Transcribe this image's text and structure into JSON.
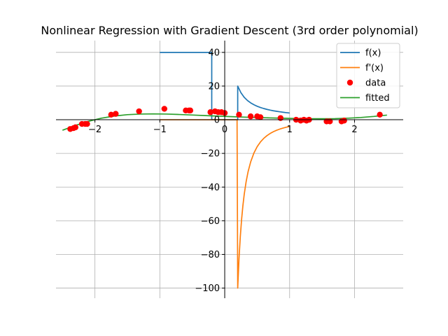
{
  "chart_data": {
    "type": "line",
    "title": "Nonlinear Regression with Gradient Descent (3rd order polynomial)",
    "xlabel": "",
    "ylabel": "",
    "xlim": [
      -2.6,
      2.75
    ],
    "ylim": [
      -106,
      47
    ],
    "grid": true,
    "legend_position": "top-right",
    "x_ticks": [
      -2,
      -1,
      0,
      1,
      2
    ],
    "x_tick_labels": [
      "−2",
      "−1",
      "0",
      "1",
      "2"
    ],
    "y_ticks": [
      -100,
      -80,
      -60,
      -40,
      -20,
      0,
      20,
      40
    ],
    "y_tick_labels": [
      "−100",
      "−80",
      "−60",
      "−40",
      "−20",
      "0",
      "20",
      "40"
    ],
    "legend": [
      "f(x)",
      "f'(x)",
      "data",
      "fitted"
    ],
    "colors": {
      "f": "#1f77b4",
      "fprime": "#ff7f0e",
      "data": "#ff0000",
      "fitted": "#2ca02c",
      "grid": "#b0b0b0"
    },
    "series": [
      {
        "name": "f(x)",
        "kind": "line",
        "points": [
          [
            -1.0,
            40
          ],
          [
            -0.2,
            40
          ],
          [
            -0.2,
            0
          ],
          [
            0.2,
            0
          ],
          [
            0.2,
            20
          ],
          [
            0.25,
            16
          ],
          [
            0.3,
            13.33
          ],
          [
            0.35,
            11.43
          ],
          [
            0.4,
            10
          ],
          [
            0.45,
            8.89
          ],
          [
            0.5,
            8
          ],
          [
            0.55,
            7.27
          ],
          [
            0.6,
            6.67
          ],
          [
            0.65,
            6.15
          ],
          [
            0.7,
            5.71
          ],
          [
            0.75,
            5.33
          ],
          [
            0.8,
            5
          ],
          [
            0.85,
            4.71
          ],
          [
            0.9,
            4.44
          ],
          [
            0.95,
            4.21
          ],
          [
            1.0,
            4
          ]
        ]
      },
      {
        "name": "f'(x)",
        "kind": "line",
        "points": [
          [
            -1.0,
            0
          ],
          [
            0.19,
            0
          ],
          [
            0.2,
            -100
          ],
          [
            0.22,
            -82.64
          ],
          [
            0.24,
            -69.44
          ],
          [
            0.26,
            -59.17
          ],
          [
            0.28,
            -51.02
          ],
          [
            0.3,
            -44.44
          ],
          [
            0.33,
            -36.73
          ],
          [
            0.36,
            -30.86
          ],
          [
            0.4,
            -25
          ],
          [
            0.45,
            -19.75
          ],
          [
            0.5,
            -16
          ],
          [
            0.55,
            -13.22
          ],
          [
            0.6,
            -11.11
          ],
          [
            0.65,
            -9.47
          ],
          [
            0.7,
            -8.16
          ],
          [
            0.75,
            -7.11
          ],
          [
            0.8,
            -6.25
          ],
          [
            0.85,
            -5.54
          ],
          [
            0.9,
            -4.94
          ],
          [
            0.95,
            -4.43
          ],
          [
            1.0,
            -4
          ]
        ]
      },
      {
        "name": "data",
        "kind": "scatter",
        "points": [
          [
            -2.38,
            -5.5
          ],
          [
            -2.33,
            -5
          ],
          [
            -2.3,
            -4.5
          ],
          [
            -2.2,
            -2.5
          ],
          [
            -2.15,
            -2.5
          ],
          [
            -2.12,
            -2.5
          ],
          [
            -1.75,
            3
          ],
          [
            -1.68,
            3.5
          ],
          [
            -1.32,
            5
          ],
          [
            -0.93,
            6.5
          ],
          [
            -0.6,
            5.5
          ],
          [
            -0.55,
            5.5
          ],
          [
            -0.53,
            5.5
          ],
          [
            -0.22,
            4.5
          ],
          [
            -0.15,
            5
          ],
          [
            -0.1,
            4.5
          ],
          [
            -0.05,
            4.5
          ],
          [
            0.0,
            4
          ],
          [
            0.22,
            3
          ],
          [
            0.4,
            2
          ],
          [
            0.5,
            2
          ],
          [
            0.55,
            1.5
          ],
          [
            0.86,
            1
          ],
          [
            1.1,
            0
          ],
          [
            1.17,
            -0.5
          ],
          [
            1.22,
            0
          ],
          [
            1.26,
            -0.5
          ],
          [
            1.3,
            0
          ],
          [
            1.57,
            -1
          ],
          [
            1.62,
            -1
          ],
          [
            1.8,
            -1
          ],
          [
            1.84,
            -0.5
          ],
          [
            2.39,
            3
          ]
        ]
      },
      {
        "name": "fitted",
        "kind": "line",
        "points": [
          [
            -2.5,
            -6.25
          ],
          [
            -2.3,
            -3.38
          ],
          [
            -2.1,
            -0.93
          ],
          [
            -1.9,
            0.92
          ],
          [
            -1.7,
            2.21
          ],
          [
            -1.5,
            3.0
          ],
          [
            -1.3,
            3.38
          ],
          [
            -1.1,
            3.47
          ],
          [
            -0.9,
            3.36
          ],
          [
            -0.7,
            3.12
          ],
          [
            -0.5,
            2.81
          ],
          [
            -0.3,
            2.47
          ],
          [
            -0.1,
            2.14
          ],
          [
            0.1,
            1.84
          ],
          [
            0.3,
            1.56
          ],
          [
            0.5,
            1.31
          ],
          [
            0.7,
            1.09
          ],
          [
            0.9,
            0.89
          ],
          [
            1.1,
            0.73
          ],
          [
            1.3,
            0.62
          ],
          [
            1.5,
            0.59
          ],
          [
            1.7,
            0.66
          ],
          [
            1.9,
            0.92
          ],
          [
            2.1,
            1.35
          ],
          [
            2.3,
            1.96
          ],
          [
            2.5,
            2.75
          ]
        ]
      }
    ]
  }
}
